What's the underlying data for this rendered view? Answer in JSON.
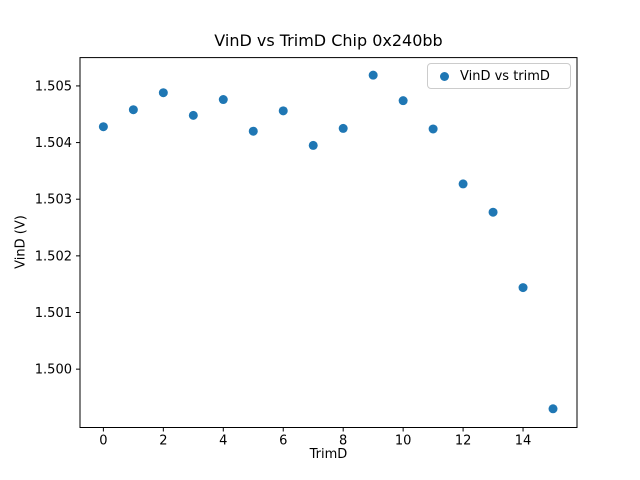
{
  "chart_data": {
    "type": "scatter",
    "title": "VinD vs TrimD Chip 0x240bb",
    "xlabel": "TrimD",
    "ylabel": "VinD (V)",
    "legend": {
      "label": "VinD vs trimD",
      "position": "upper right"
    },
    "marker_color": "#1f77b4",
    "axis_color": "#000000",
    "x": [
      0,
      1,
      2,
      3,
      4,
      5,
      6,
      7,
      8,
      9,
      10,
      11,
      12,
      13,
      14,
      15
    ],
    "y": [
      1.50428,
      1.50458,
      1.50488,
      1.50448,
      1.50476,
      1.5042,
      1.50456,
      1.50395,
      1.50425,
      1.50519,
      1.50474,
      1.50424,
      1.50327,
      1.50277,
      1.50144,
      1.4993
    ],
    "xlim": [
      -0.78,
      15.8
    ],
    "ylim": [
      1.49897,
      1.5055
    ],
    "xticks": [
      0,
      2,
      4,
      6,
      8,
      10,
      12,
      14
    ],
    "xtick_labels": [
      "0",
      "2",
      "4",
      "6",
      "8",
      "10",
      "12",
      "14"
    ],
    "yticks": [
      1.5,
      1.501,
      1.502,
      1.503,
      1.504,
      1.505
    ],
    "ytick_labels": [
      "1.500",
      "1.501",
      "1.502",
      "1.503",
      "1.504",
      "1.505"
    ],
    "grid": false
  }
}
